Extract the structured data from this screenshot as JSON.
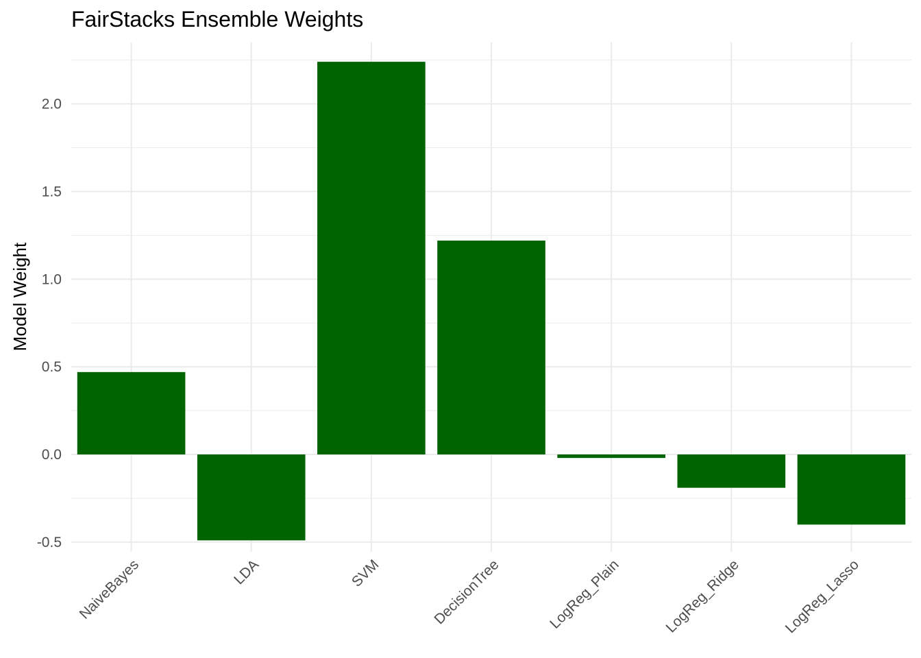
{
  "chart_data": {
    "type": "bar",
    "title": "FairStacks Ensemble Weights",
    "xlabel": "",
    "ylabel": "Model Weight",
    "categories": [
      "NaiveBayes",
      "LDA",
      "SVM",
      "DecisionTree",
      "LogReg_Plain",
      "LogReg_Ridge",
      "LogReg_Lasso"
    ],
    "values": [
      0.47,
      -0.49,
      2.24,
      1.22,
      -0.02,
      -0.19,
      -0.4
    ],
    "ylim": [
      -0.555,
      2.35
    ],
    "yticks": [
      -0.5,
      0.0,
      0.5,
      1.0,
      1.5,
      2.0
    ],
    "ytick_labels": [
      "-0.5",
      "0.0",
      "0.5",
      "1.0",
      "1.5",
      "2.0"
    ],
    "grid": true,
    "legend": "none",
    "bar_color": "#006400",
    "grid_color": "#ebebeb",
    "axis_text_color": "#4d4d4d"
  }
}
